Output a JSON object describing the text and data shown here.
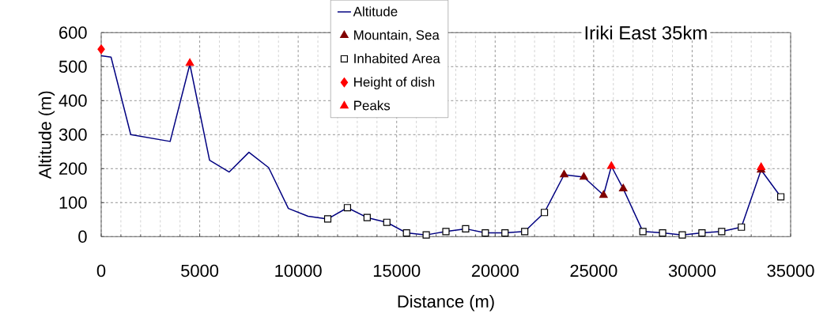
{
  "chart_data": {
    "type": "line",
    "title": "Iriki East 35km",
    "xlabel": "Distance (m)",
    "ylabel": "Altitude (m)",
    "xlim": [
      0,
      35000
    ],
    "xticks": [
      0,
      5000,
      10000,
      15000,
      20000,
      25000,
      30000,
      35000
    ],
    "ylim": [
      0,
      600
    ],
    "yticks": [
      0,
      100,
      200,
      300,
      400,
      500,
      600
    ],
    "grid": true,
    "legend": "top",
    "series": [
      {
        "name": "Altitude",
        "marker": "none",
        "color": "#000080",
        "x": [
          0,
          500,
          1500,
          3500,
          4500,
          5500,
          6500,
          7500,
          8500,
          9500,
          10500,
          11500,
          12500,
          13500,
          14500,
          15500,
          16500,
          17500,
          18500,
          19500,
          20500,
          21500,
          22500,
          23500,
          24500,
          25500,
          25900,
          26500,
          27500,
          28500,
          29500,
          30500,
          31500,
          32500,
          33500,
          34500
        ],
        "values": [
          532,
          528,
          300,
          280,
          507,
          225,
          190,
          248,
          203,
          83,
          60,
          52,
          85,
          56,
          42,
          11,
          5,
          15,
          23,
          11,
          11,
          15,
          71,
          182,
          175,
          122,
          207,
          141,
          15,
          11,
          5,
          11,
          15,
          28,
          196,
          117
        ]
      },
      {
        "name": "Mountain, Sea",
        "type": "scatter",
        "marker": "triangle",
        "color": "#800000",
        "x": [
          23500,
          24500,
          25500,
          26500,
          33500
        ],
        "values": [
          182,
          175,
          122,
          141,
          196
        ]
      },
      {
        "name": "Inhabited Area",
        "type": "scatter",
        "marker": "square",
        "color": "#000000",
        "x": [
          11500,
          12500,
          13500,
          14500,
          15500,
          16500,
          17500,
          18500,
          19500,
          20500,
          21500,
          22500,
          27500,
          28500,
          29500,
          30500,
          31500,
          32500,
          34500
        ],
        "values": [
          52,
          85,
          56,
          42,
          11,
          5,
          15,
          23,
          11,
          11,
          15,
          71,
          15,
          11,
          5,
          11,
          15,
          28,
          117
        ]
      },
      {
        "name": "Height of dish",
        "type": "scatter",
        "marker": "diamond",
        "color": "#ff0000",
        "x": [
          0
        ],
        "values": [
          551
        ]
      },
      {
        "name": "Peaks",
        "type": "scatter",
        "marker": "triangle",
        "color": "#ff0000",
        "x": [
          4500,
          25900,
          33500
        ],
        "values": [
          510,
          207,
          204
        ]
      }
    ]
  }
}
